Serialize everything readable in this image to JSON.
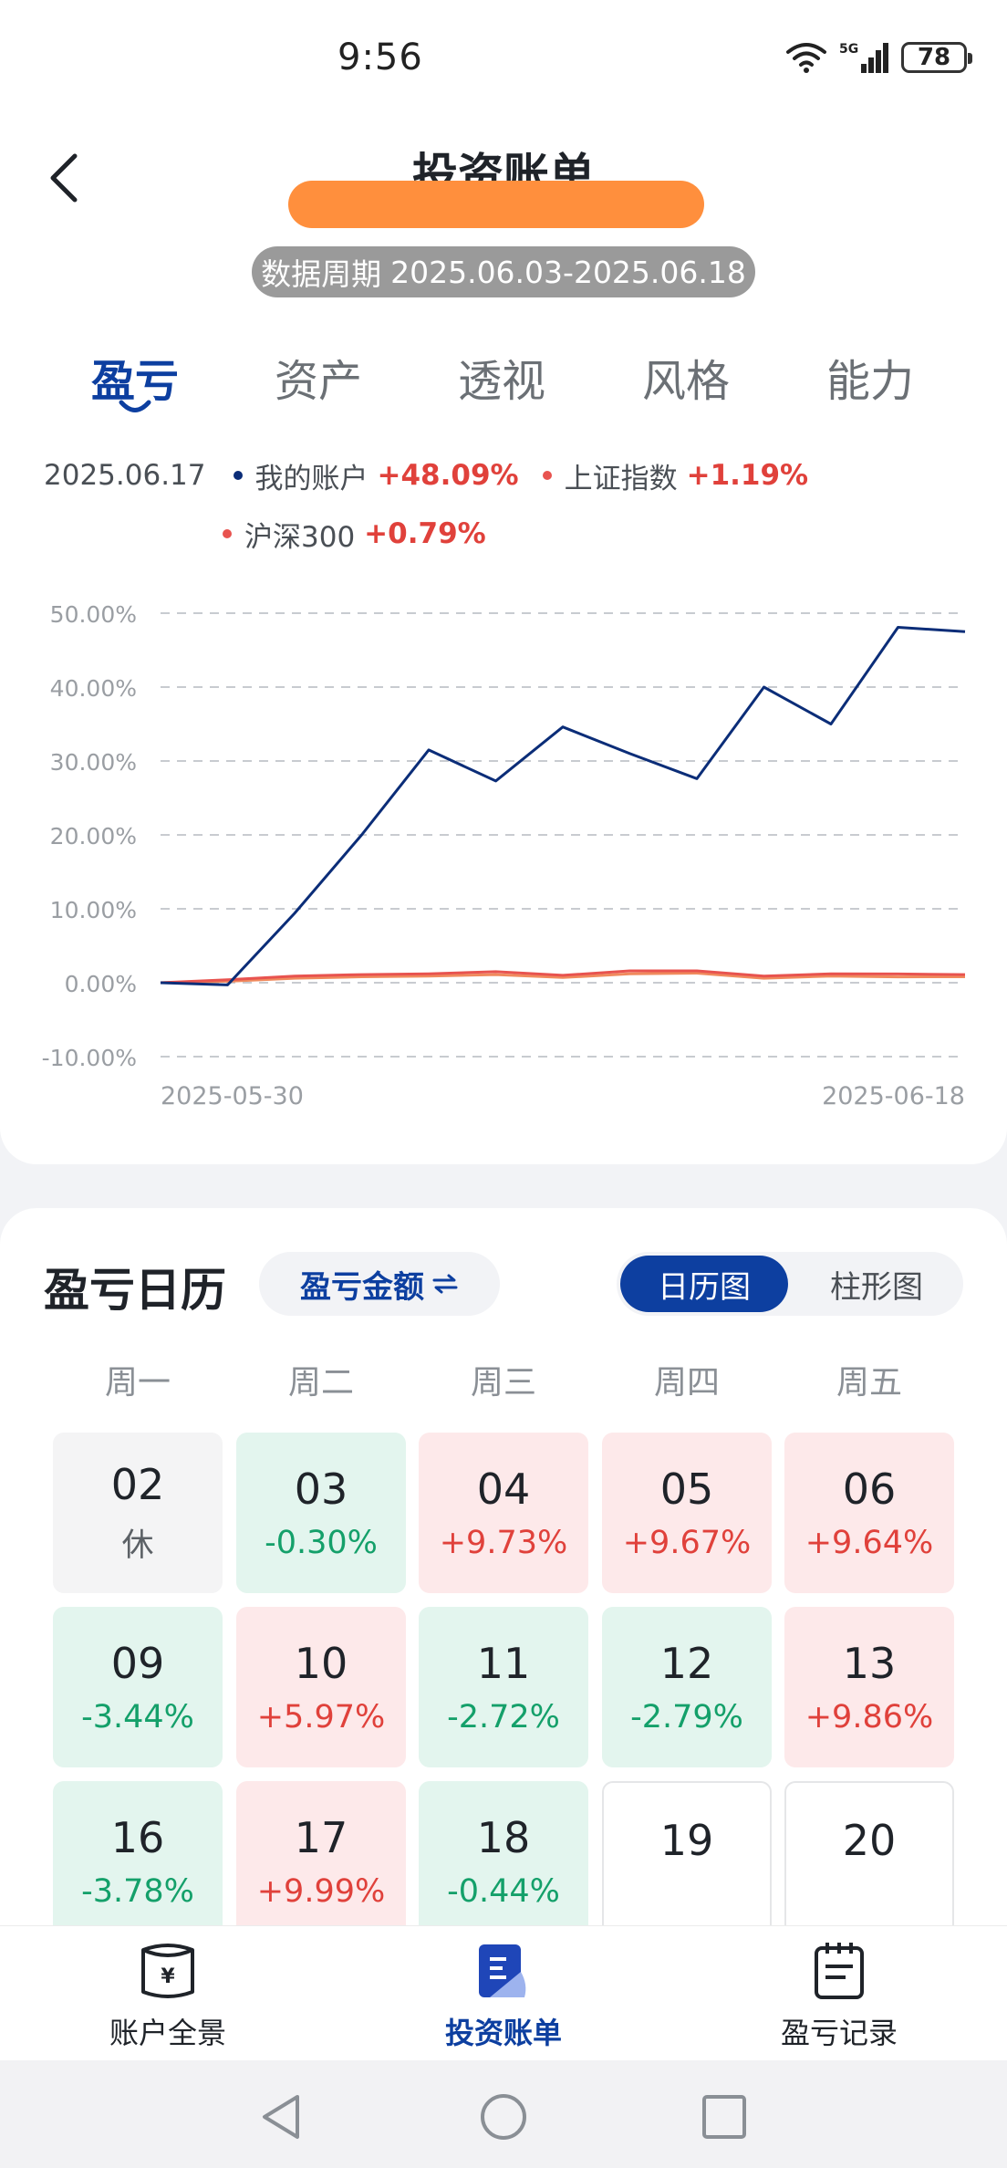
{
  "status": {
    "time": "9:56",
    "network": "5G",
    "battery": "78"
  },
  "header": {
    "title": "投资账单",
    "period_label": "数据周期",
    "period_value": "2025.06.03-2025.06.18"
  },
  "tabs": [
    {
      "label": "盈亏",
      "active": true
    },
    {
      "label": "资产",
      "active": false
    },
    {
      "label": "透视",
      "active": false
    },
    {
      "label": "风格",
      "active": false
    },
    {
      "label": "能力",
      "active": false
    }
  ],
  "legend": {
    "date": "2025.06.17",
    "items": [
      {
        "name": "我的账户",
        "value": "+48.09%",
        "color": "#0b2d78"
      },
      {
        "name": "上证指数",
        "value": "+1.19%",
        "color": "#e8534f"
      },
      {
        "name": "沪深300",
        "value": "+0.79%",
        "color": "#e8534f"
      }
    ]
  },
  "chart_data": {
    "type": "line",
    "x": [
      "2025-05-30",
      "2025-06-03",
      "2025-06-04",
      "2025-06-05",
      "2025-06-06",
      "2025-06-09",
      "2025-06-10",
      "2025-06-11",
      "2025-06-12",
      "2025-06-13",
      "2025-06-16",
      "2025-06-17",
      "2025-06-18"
    ],
    "x_tick_labels": [
      "2025-05-30",
      "2025-06-18"
    ],
    "y_ticks": [
      "50.00%",
      "40.00%",
      "30.00%",
      "20.00%",
      "10.00%",
      "0.00%",
      "-10.00%"
    ],
    "ylim": [
      -10,
      50
    ],
    "series": [
      {
        "name": "我的账户",
        "color": "#0b2d78",
        "values": [
          0,
          -0.3,
          9.4,
          20.0,
          31.5,
          27.3,
          34.6,
          31.0,
          27.6,
          40.0,
          35.0,
          48.09,
          47.5
        ]
      },
      {
        "name": "上证指数",
        "color": "#e8534f",
        "values": [
          0,
          0.4,
          0.9,
          1.1,
          1.2,
          1.5,
          1.0,
          1.6,
          1.6,
          0.9,
          1.2,
          1.19,
          1.1
        ]
      },
      {
        "name": "沪深300",
        "color": "#f08a5d",
        "values": [
          0,
          0.2,
          0.6,
          0.8,
          0.9,
          1.1,
          0.7,
          1.2,
          1.3,
          0.6,
          0.9,
          0.79,
          0.8
        ]
      }
    ],
    "grid": true
  },
  "calendar": {
    "title": "盈亏日历",
    "metric_label": "盈亏金额",
    "view_options": [
      {
        "label": "日历图",
        "active": true
      },
      {
        "label": "柱形图",
        "active": false
      }
    ],
    "weekdays": [
      "周一",
      "周二",
      "周三",
      "周四",
      "周五"
    ],
    "rows": [
      [
        {
          "day": "02",
          "value": "休",
          "kind": "rest"
        },
        {
          "day": "03",
          "value": "-0.30%",
          "kind": "down"
        },
        {
          "day": "04",
          "value": "+9.73%",
          "kind": "up"
        },
        {
          "day": "05",
          "value": "+9.67%",
          "kind": "up"
        },
        {
          "day": "06",
          "value": "+9.64%",
          "kind": "up"
        }
      ],
      [
        {
          "day": "09",
          "value": "-3.44%",
          "kind": "down"
        },
        {
          "day": "10",
          "value": "+5.97%",
          "kind": "up"
        },
        {
          "day": "11",
          "value": "-2.72%",
          "kind": "down"
        },
        {
          "day": "12",
          "value": "-2.79%",
          "kind": "down"
        },
        {
          "day": "13",
          "value": "+9.86%",
          "kind": "up"
        }
      ],
      [
        {
          "day": "16",
          "value": "-3.78%",
          "kind": "down"
        },
        {
          "day": "17",
          "value": "+9.99%",
          "kind": "up"
        },
        {
          "day": "18",
          "value": "-0.44%",
          "kind": "down"
        },
        {
          "day": "19",
          "value": "",
          "kind": "empty"
        },
        {
          "day": "20",
          "value": "",
          "kind": "empty"
        }
      ]
    ]
  },
  "bottom_nav": [
    {
      "label": "账户全景",
      "icon": "account-overview-icon",
      "active": false
    },
    {
      "label": "投资账单",
      "icon": "investment-bill-icon",
      "active": true
    },
    {
      "label": "盈亏记录",
      "icon": "pnl-record-icon",
      "active": false
    }
  ]
}
